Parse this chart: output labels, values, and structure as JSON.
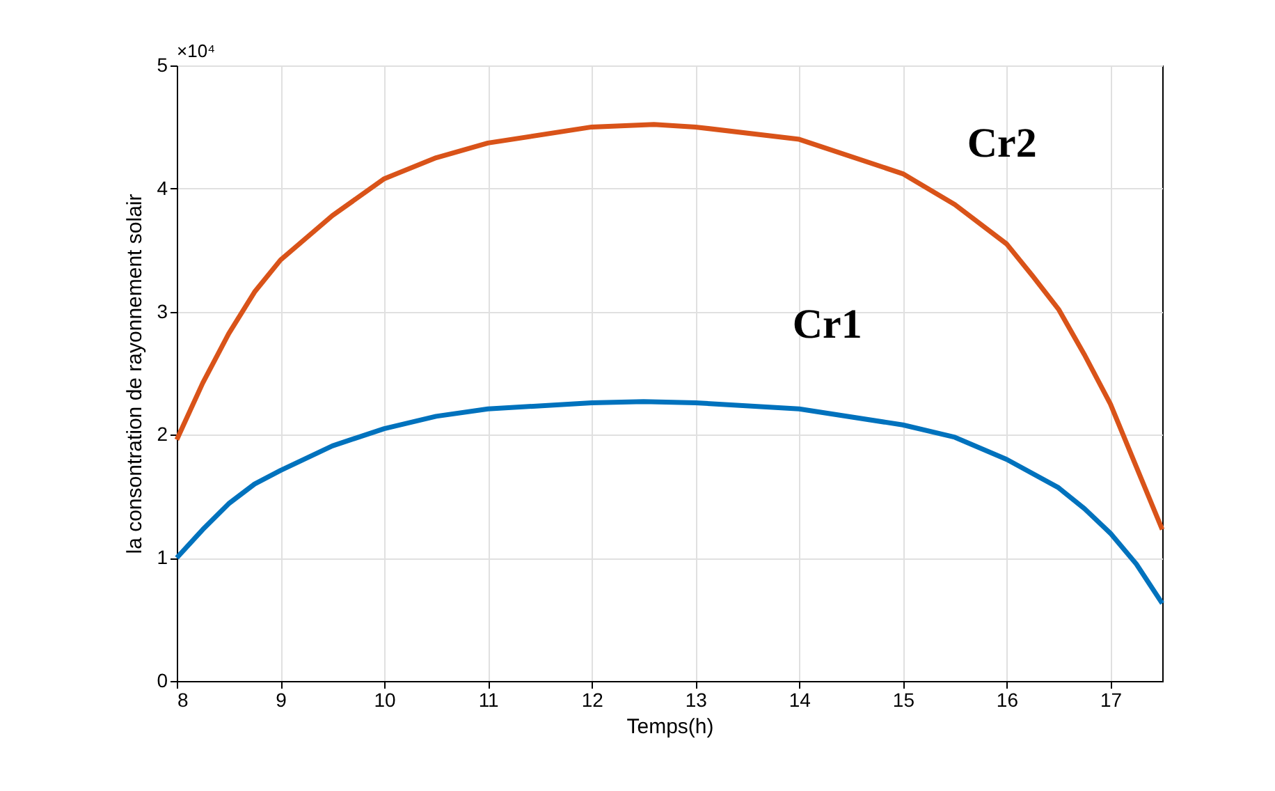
{
  "chart_data": {
    "type": "line",
    "xlabel": "Temps(h)",
    "ylabel": "la consontration de rayonnement solair",
    "xlim": [
      8,
      17.5
    ],
    "xticks": [
      8,
      9,
      10,
      11,
      12,
      13,
      14,
      15,
      16,
      17
    ],
    "ylim": [
      0,
      5
    ],
    "yticks": [
      0,
      1,
      2,
      3,
      4,
      5
    ],
    "grid": true,
    "marker": "none",
    "line_style": "solid",
    "annotations": [
      "×10⁴"
    ],
    "series": [
      {
        "name": "Cr1",
        "color": "#0072bd",
        "x": [
          8,
          8.25,
          8.5,
          8.75,
          9,
          9.5,
          10,
          10.5,
          11,
          12,
          12.5,
          13,
          14,
          15,
          15.5,
          16,
          16.5,
          16.75,
          17,
          17.25,
          17.5
        ],
        "values": [
          1.0,
          1.23,
          1.44,
          1.6,
          1.71,
          1.91,
          2.05,
          2.15,
          2.21,
          2.26,
          2.27,
          2.26,
          2.21,
          2.08,
          1.98,
          1.8,
          1.57,
          1.4,
          1.2,
          0.95,
          0.63
        ]
      },
      {
        "name": "Cr2",
        "color": "#d95319",
        "x": [
          8,
          8.25,
          8.5,
          8.75,
          9,
          9.5,
          10,
          10.5,
          11,
          12,
          12.6,
          13,
          14,
          15,
          15.5,
          16,
          16.25,
          16.5,
          16.75,
          17,
          17.25,
          17.5
        ],
        "values": [
          1.96,
          2.42,
          2.82,
          3.16,
          3.42,
          3.78,
          4.08,
          4.25,
          4.37,
          4.5,
          4.52,
          4.5,
          4.4,
          4.12,
          3.87,
          3.55,
          3.29,
          3.02,
          2.65,
          2.25,
          1.74,
          1.23
        ]
      }
    ]
  }
}
